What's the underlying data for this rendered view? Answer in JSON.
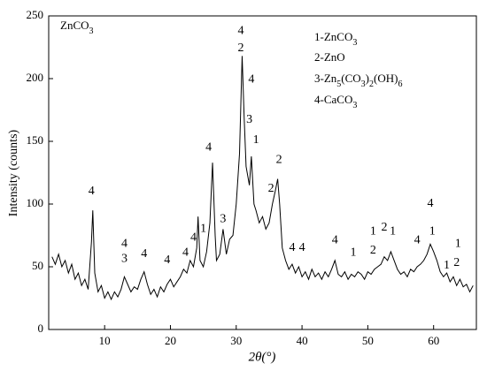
{
  "chart_data": {
    "type": "line",
    "title": "ZnCO3",
    "xlabel": "2θ(°)",
    "ylabel": "Intensity (counts)",
    "legend": [
      "1-ZnCO3",
      "2-ZnO",
      "3-Zn5(CO3)2(OH)6",
      "4-CaCO3"
    ],
    "xlim": [
      1.5,
      66.5
    ],
    "ylim": [
      0,
      250
    ],
    "xticks": [
      10,
      20,
      30,
      40,
      50,
      60
    ],
    "yticks": [
      0,
      50,
      100,
      150,
      200,
      250
    ],
    "series": [
      {
        "color": "#000000",
        "x": [
          2,
          2.5,
          3,
          3.5,
          4,
          4.5,
          5,
          5.5,
          6,
          6.5,
          7,
          7.5,
          8,
          8.2,
          8.5,
          9,
          9.5,
          10,
          10.5,
          11,
          11.5,
          12,
          12.5,
          13,
          13.5,
          14,
          14.5,
          15,
          15.5,
          16,
          16.5,
          17,
          17.5,
          18,
          18.5,
          19,
          19.5,
          20,
          20.5,
          21,
          21.5,
          22,
          22.5,
          23,
          23.5,
          24,
          24.2,
          24.5,
          25,
          25.5,
          26,
          26.4,
          26.8,
          27,
          27.5,
          28,
          28.5,
          29,
          29.5,
          30,
          30.5,
          30.9,
          31.2,
          31.5,
          32,
          32.3,
          32.7,
          33,
          33.5,
          34,
          34.5,
          35,
          35.5,
          36,
          36.3,
          36.6,
          37,
          37.5,
          38,
          38.5,
          39,
          39.5,
          40,
          40.5,
          41,
          41.5,
          42,
          42.5,
          43,
          43.5,
          44,
          44.5,
          45,
          45.5,
          46,
          46.5,
          47,
          47.5,
          48,
          48.5,
          49,
          49.5,
          50,
          50.5,
          51,
          51.5,
          52,
          52.5,
          53,
          53.5,
          54,
          54.5,
          55,
          55.5,
          56,
          56.5,
          57,
          57.5,
          58,
          58.5,
          59,
          59.5,
          60,
          60.5,
          61,
          61.5,
          62,
          62.5,
          63,
          63.5,
          64,
          64.5,
          65,
          65.5,
          66
        ],
        "values": [
          58,
          52,
          60,
          50,
          55,
          45,
          52,
          40,
          45,
          35,
          40,
          32,
          70,
          95,
          45,
          30,
          35,
          25,
          30,
          24,
          30,
          26,
          32,
          42,
          36,
          30,
          34,
          32,
          40,
          46,
          36,
          28,
          32,
          26,
          34,
          30,
          36,
          40,
          34,
          38,
          42,
          48,
          45,
          55,
          50,
          65,
          90,
          55,
          50,
          62,
          85,
          133,
          75,
          55,
          60,
          80,
          60,
          72,
          75,
          100,
          140,
          218,
          170,
          130,
          115,
          138,
          100,
          95,
          85,
          90,
          80,
          85,
          100,
          112,
          120,
          100,
          65,
          55,
          48,
          52,
          45,
          50,
          42,
          46,
          40,
          48,
          42,
          45,
          40,
          46,
          42,
          48,
          55,
          44,
          42,
          46,
          40,
          44,
          42,
          46,
          44,
          40,
          46,
          44,
          48,
          50,
          52,
          58,
          55,
          62,
          55,
          48,
          44,
          46,
          42,
          48,
          46,
          50,
          52,
          55,
          60,
          68,
          62,
          55,
          46,
          42,
          45,
          38,
          42,
          35,
          40,
          34,
          36,
          30,
          35
        ]
      }
    ],
    "annotations": [
      {
        "text": "4",
        "x": 8,
        "y": 110
      },
      {
        "text": "4",
        "x": 13,
        "y": 68
      },
      {
        "text": "3",
        "x": 13,
        "y": 56
      },
      {
        "text": "4",
        "x": 16,
        "y": 60
      },
      {
        "text": "4",
        "x": 19.5,
        "y": 55
      },
      {
        "text": "4",
        "x": 22.3,
        "y": 61
      },
      {
        "text": "4",
        "x": 23.5,
        "y": 73
      },
      {
        "text": "1",
        "x": 25,
        "y": 80
      },
      {
        "text": "4",
        "x": 25.8,
        "y": 145
      },
      {
        "text": "3",
        "x": 28,
        "y": 88
      },
      {
        "text": "4",
        "x": 30.7,
        "y": 238
      },
      {
        "text": "2",
        "x": 30.7,
        "y": 224
      },
      {
        "text": "4",
        "x": 32.3,
        "y": 199
      },
      {
        "text": "3",
        "x": 32,
        "y": 167
      },
      {
        "text": "1",
        "x": 33,
        "y": 151
      },
      {
        "text": "2",
        "x": 35.3,
        "y": 112
      },
      {
        "text": "2",
        "x": 36.5,
        "y": 135
      },
      {
        "text": "4",
        "x": 38.5,
        "y": 65
      },
      {
        "text": "4",
        "x": 40,
        "y": 65
      },
      {
        "text": "4",
        "x": 45,
        "y": 71
      },
      {
        "text": "1",
        "x": 47.8,
        "y": 61
      },
      {
        "text": "1",
        "x": 50.8,
        "y": 78
      },
      {
        "text": "2",
        "x": 50.8,
        "y": 63
      },
      {
        "text": "2",
        "x": 52.5,
        "y": 81
      },
      {
        "text": "1",
        "x": 53.8,
        "y": 78
      },
      {
        "text": "4",
        "x": 57.5,
        "y": 71
      },
      {
        "text": "4",
        "x": 59.5,
        "y": 100
      },
      {
        "text": "1",
        "x": 59.8,
        "y": 78
      },
      {
        "text": "1",
        "x": 62,
        "y": 51
      },
      {
        "text": "1",
        "x": 63.7,
        "y": 68
      },
      {
        "text": "2",
        "x": 63.5,
        "y": 53
      }
    ]
  }
}
